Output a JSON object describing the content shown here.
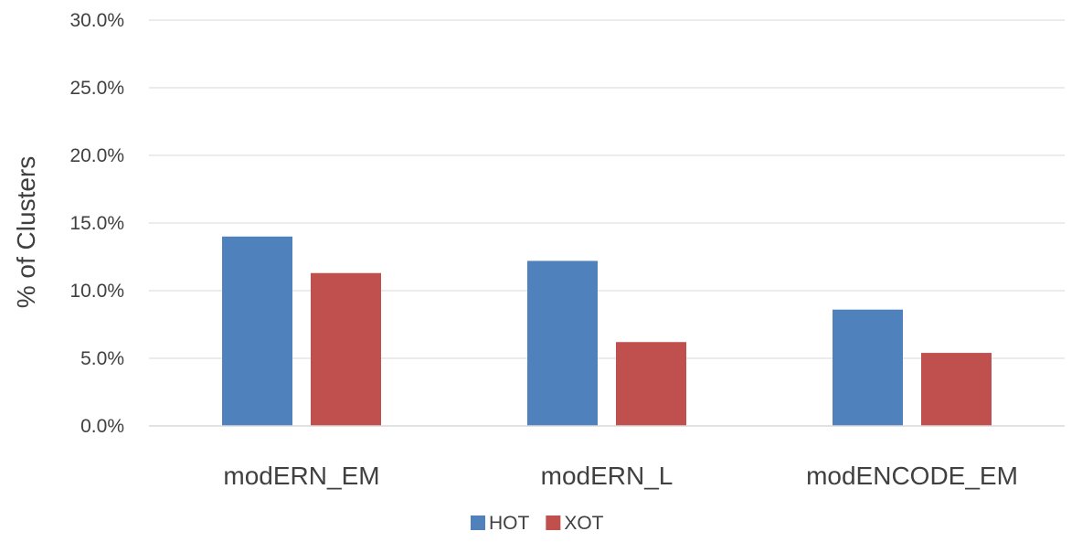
{
  "chart_data": {
    "type": "bar",
    "title": "",
    "xlabel": "",
    "ylabel": "% of Clusters",
    "categories": [
      "modERN_EM",
      "modERN_L",
      "modENCODE_EM"
    ],
    "series": [
      {
        "name": "HOT",
        "color": "#4f81bd",
        "values": [
          14.0,
          12.2,
          8.6
        ]
      },
      {
        "name": "XOT",
        "color": "#c0504d",
        "values": [
          11.3,
          6.2,
          5.4
        ]
      }
    ],
    "ylim": [
      0,
      30
    ],
    "yticks": [
      0,
      5,
      10,
      15,
      20,
      25,
      30
    ],
    "ytick_labels": [
      "0.0%",
      "5.0%",
      "10.0%",
      "15.0%",
      "20.0%",
      "25.0%",
      "30.0%"
    ],
    "y_unit": "%",
    "grid": true,
    "grid_color": "#d9d9d9",
    "legend_position": "bottom"
  }
}
